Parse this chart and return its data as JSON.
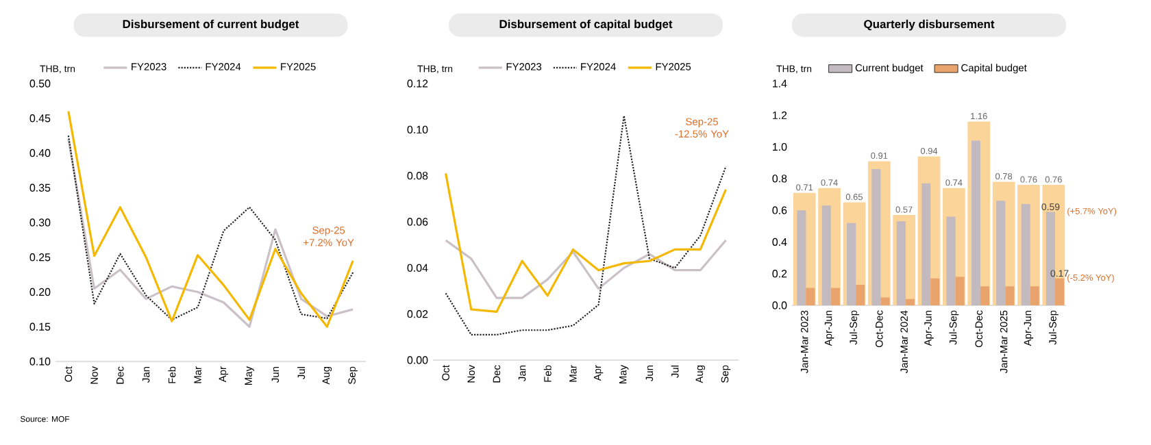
{
  "chart_data": [
    {
      "type": "line",
      "title": "Disbursement of current budget",
      "ylabel": "THB, trn",
      "categories": [
        "Oct",
        "Nov",
        "Dec",
        "Jan",
        "Feb",
        "Mar",
        "Apr",
        "May",
        "Jun",
        "Jul",
        "Aug",
        "Sep"
      ],
      "series": [
        {
          "name": "FY2023",
          "color": "#c9c1c6",
          "line_style": "solid",
          "values": [
            0.42,
            0.205,
            0.232,
            0.19,
            0.208,
            0.2,
            0.185,
            0.15,
            0.29,
            0.19,
            0.165,
            0.175
          ]
        },
        {
          "name": "FY2024",
          "color": "#222222",
          "line_style": "dotted",
          "values": [
            0.425,
            0.183,
            0.255,
            0.195,
            0.16,
            0.178,
            0.288,
            0.322,
            0.275,
            0.168,
            0.162,
            0.228
          ]
        },
        {
          "name": "FY2025",
          "color": "#f5b800",
          "line_style": "solid",
          "values": [
            0.46,
            0.252,
            0.322,
            0.25,
            0.158,
            0.253,
            0.21,
            0.16,
            0.262,
            0.198,
            0.15,
            0.245
          ]
        }
      ],
      "ylim": [
        0.1,
        0.5
      ],
      "yticks": [
        {
          "value": 0.1,
          "label": "0.10"
        },
        {
          "value": 0.15,
          "label": "0.15"
        },
        {
          "value": 0.2,
          "label": "0.20"
        },
        {
          "value": 0.25,
          "label": "0.25"
        },
        {
          "value": 0.3,
          "label": "0.30"
        },
        {
          "value": 0.35,
          "label": "0.35"
        },
        {
          "value": 0.4,
          "label": "0.40"
        },
        {
          "value": 0.45,
          "label": "0.45"
        },
        {
          "value": 0.5,
          "label": "0.50"
        }
      ],
      "legend": "top",
      "annotations": [
        "Sep-25 +7.2% YoY",
        "Source: MOF"
      ]
    },
    {
      "type": "line",
      "title": "Disbursement of capital budget",
      "ylabel": "THB, trn",
      "categories": [
        "Oct",
        "Nov",
        "Dec",
        "Jan",
        "Feb",
        "Mar",
        "Apr",
        "May",
        "Jun",
        "Jul",
        "Aug",
        "Sep"
      ],
      "series": [
        {
          "name": "FY2023",
          "color": "#c9c1c6",
          "line_style": "solid",
          "values": [
            0.052,
            0.044,
            0.027,
            0.027,
            0.035,
            0.047,
            0.031,
            0.04,
            0.046,
            0.039,
            0.039,
            0.052
          ]
        },
        {
          "name": "FY2024",
          "color": "#222222",
          "line_style": "dotted",
          "values": [
            0.029,
            0.011,
            0.011,
            0.013,
            0.013,
            0.015,
            0.024,
            0.106,
            0.044,
            0.04,
            0.054,
            0.084
          ]
        },
        {
          "name": "FY2025",
          "color": "#f5b800",
          "line_style": "solid",
          "values": [
            0.081,
            0.022,
            0.021,
            0.043,
            0.028,
            0.048,
            0.039,
            0.042,
            0.043,
            0.048,
            0.048,
            0.074
          ]
        }
      ],
      "ylim": [
        0,
        0.12
      ],
      "yticks": [
        {
          "value": 0,
          "label": "0.00"
        },
        {
          "value": 0.02,
          "label": "0.02"
        },
        {
          "value": 0.04,
          "label": "0.04"
        },
        {
          "value": 0.06,
          "label": "0.06"
        },
        {
          "value": 0.08,
          "label": "0.08"
        },
        {
          "value": 0.1,
          "label": "0.10"
        },
        {
          "value": 0.12,
          "label": "0.12"
        }
      ],
      "legend": "top",
      "annotations": [
        "Sep-25 -12.5% YoY"
      ]
    },
    {
      "type": "bar",
      "title": "Quarterly disbursement",
      "ylabel": "THB, trn",
      "categories": [
        "Jan-Mar 2023",
        "Apr-Jun",
        "Jul-Sep",
        "Oct-Dec",
        "Jan-Mar 2024",
        "Apr-Jun",
        "Jul-Sep",
        "Oct-Dec",
        "Jan-Mar 2025",
        "Apr-Jun",
        "Jul-Sep"
      ],
      "series": [
        {
          "color": "#fbd49a",
          "values": [
            0.71,
            0.74,
            0.65,
            0.91,
            0.57,
            0.94,
            0.74,
            1.16,
            0.78,
            0.76,
            0.76
          ],
          "value_labels": [
            "0.71",
            "0.74",
            "0.65",
            "0.91",
            "0.57",
            "0.94",
            "0.74",
            "1.16",
            "0.78",
            "0.76",
            "0.76"
          ]
        },
        {
          "name": "Current budget",
          "color": "#c2babe",
          "values": [
            0.6,
            0.63,
            0.52,
            0.86,
            0.53,
            0.77,
            0.56,
            1.04,
            0.66,
            0.64,
            0.59
          ],
          "value_labels": [
            null,
            null,
            null,
            null,
            null,
            null,
            null,
            null,
            null,
            null,
            "0.59"
          ]
        },
        {
          "name": "Capital budget",
          "color": "#e9a46e",
          "values": [
            0.11,
            0.11,
            0.13,
            0.05,
            0.04,
            0.17,
            0.18,
            0.12,
            0.12,
            0.12,
            0.17
          ],
          "value_labels": [
            null,
            null,
            null,
            null,
            null,
            null,
            null,
            null,
            null,
            null,
            "0.17"
          ]
        }
      ],
      "ylim": [
        0,
        1.4
      ],
      "yticks": [
        {
          "value": 0,
          "label": "0.0"
        },
        {
          "value": 0.2,
          "label": "0.2"
        },
        {
          "value": 0.4,
          "label": "0.4"
        },
        {
          "value": 0.6,
          "label": "0.6"
        },
        {
          "value": 0.8,
          "label": "0.8"
        },
        {
          "value": 1.0,
          "label": "1.0"
        },
        {
          "value": 1.2,
          "label": "1.2"
        },
        {
          "value": 1.4,
          "label": "1.4"
        }
      ],
      "legend": "top",
      "annotations": [
        "(+5.7% YoY)",
        "(-5.2% YoY)"
      ]
    }
  ]
}
